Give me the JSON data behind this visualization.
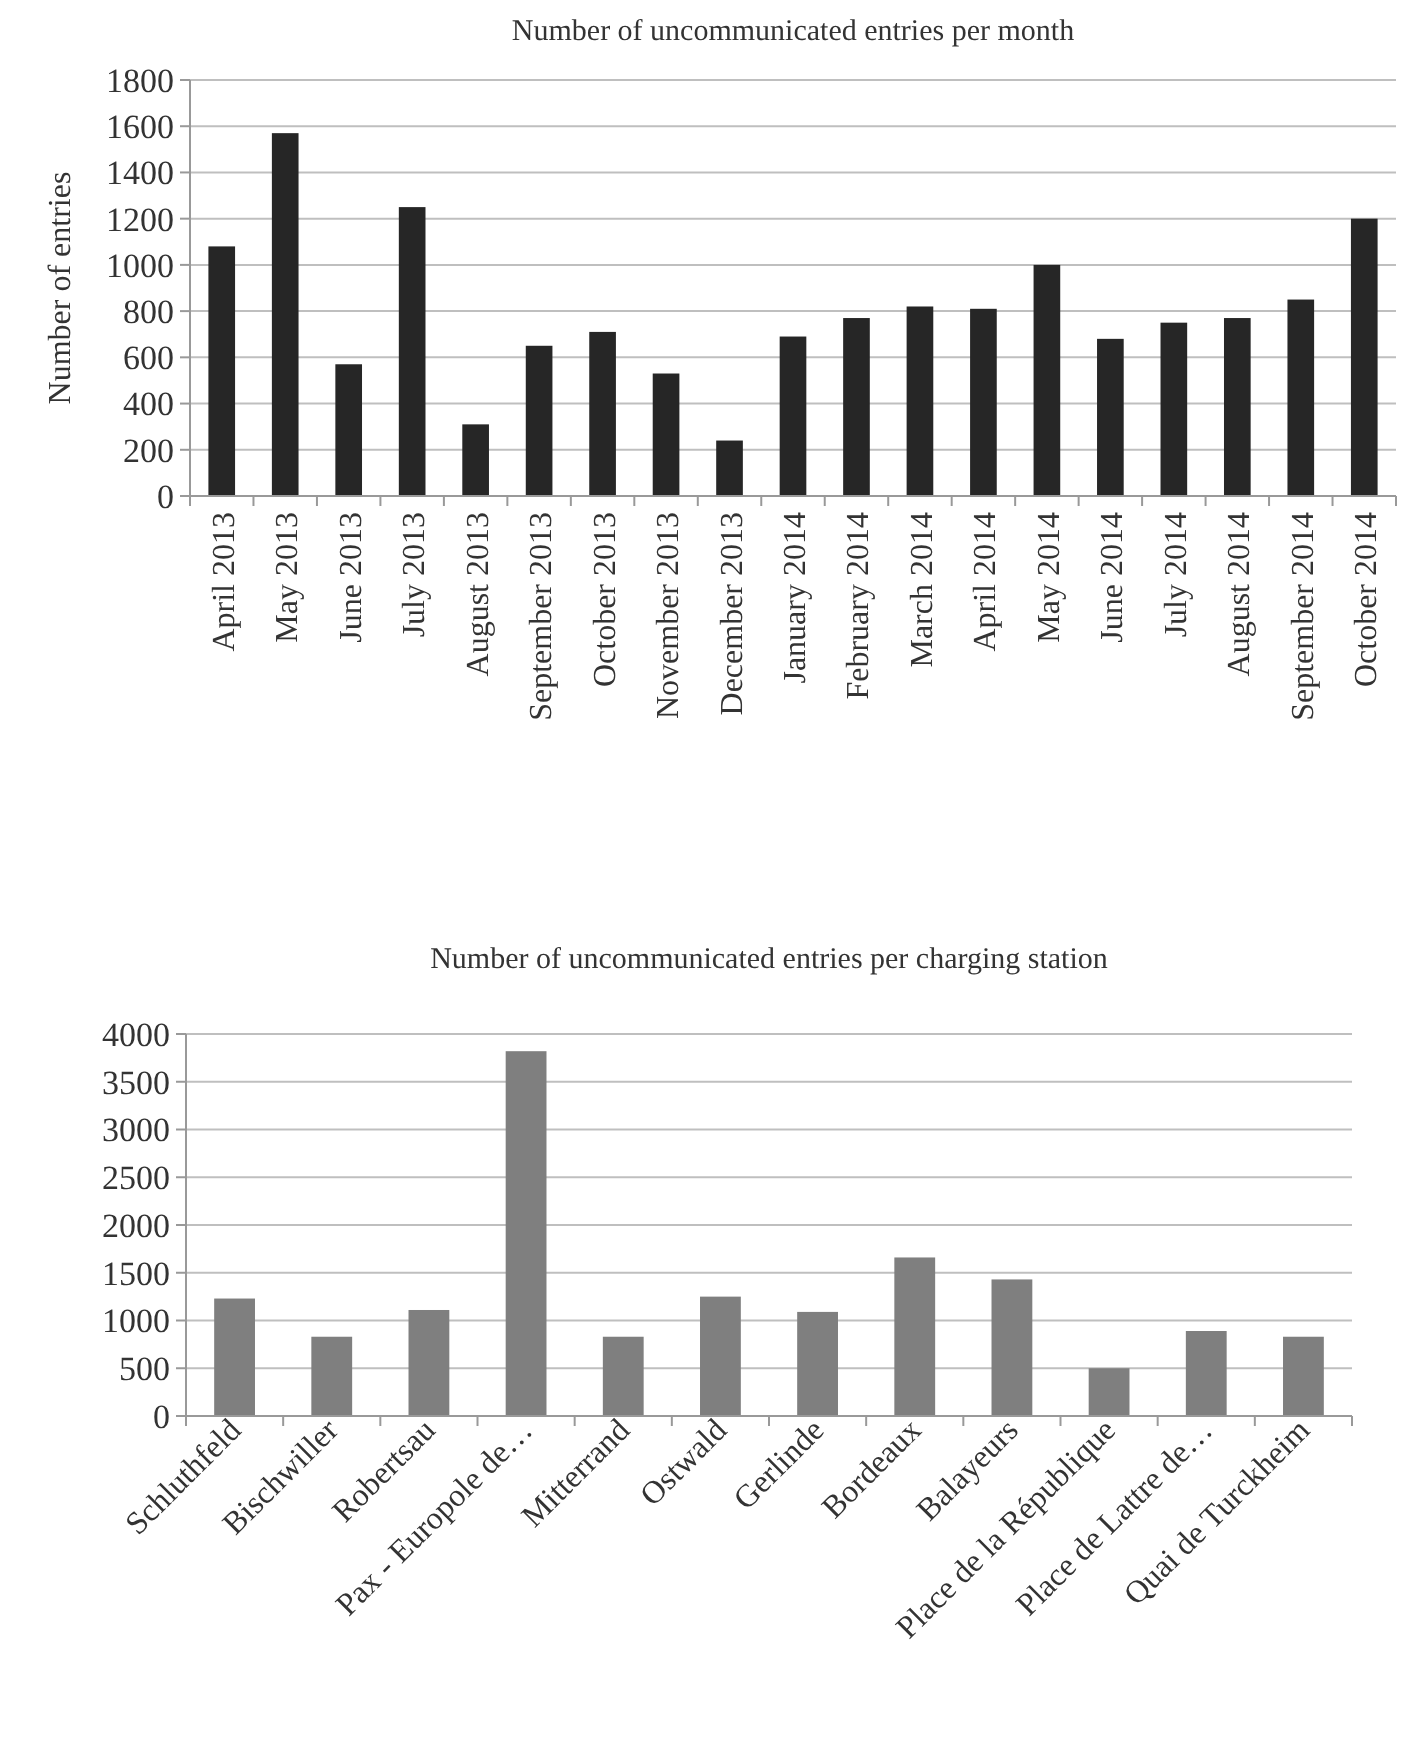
{
  "chart_data": [
    {
      "type": "bar",
      "title": "Number of uncommunicated entries per month",
      "ylabel": "Number of entries",
      "categories": [
        "April 2013",
        "May 2013",
        "June 2013",
        "July 2013",
        "August 2013",
        "September 2013",
        "October 2013",
        "November 2013",
        "December 2013",
        "January 2014",
        "February 2014",
        "March 2014",
        "April 2014",
        "May 2014",
        "June 2014",
        "July 2014",
        "August 2014",
        "September 2014",
        "October 2014"
      ],
      "values": [
        1080,
        1570,
        570,
        1250,
        310,
        650,
        710,
        530,
        240,
        690,
        770,
        820,
        810,
        1000,
        680,
        750,
        770,
        850,
        1200
      ],
      "color": "#262626",
      "ylim": [
        0,
        1800
      ],
      "yticks": [
        0,
        200,
        400,
        600,
        800,
        1000,
        1200,
        1400,
        1600,
        1800
      ],
      "grid": "y"
    },
    {
      "type": "bar",
      "title": "Number of uncommunicated entries per charging station",
      "categories": [
        "Schluthfeld",
        "Bischwiller",
        "Robertsau",
        "Pax - Europole de…",
        "Mitterrand",
        "Ostwald",
        "Gerlinde",
        "Bordeaux",
        "Balayeurs",
        "Place de la République",
        "Place de Lattre de…",
        "Quai de Turckheim"
      ],
      "values": [
        1230,
        830,
        1110,
        3820,
        830,
        1250,
        1090,
        1660,
        1430,
        500,
        890,
        830
      ],
      "color": "#7f7f7f",
      "ylim": [
        0,
        4000
      ],
      "yticks": [
        0,
        500,
        1000,
        1500,
        2000,
        2500,
        3000,
        3500,
        4000
      ],
      "grid": "y"
    }
  ]
}
